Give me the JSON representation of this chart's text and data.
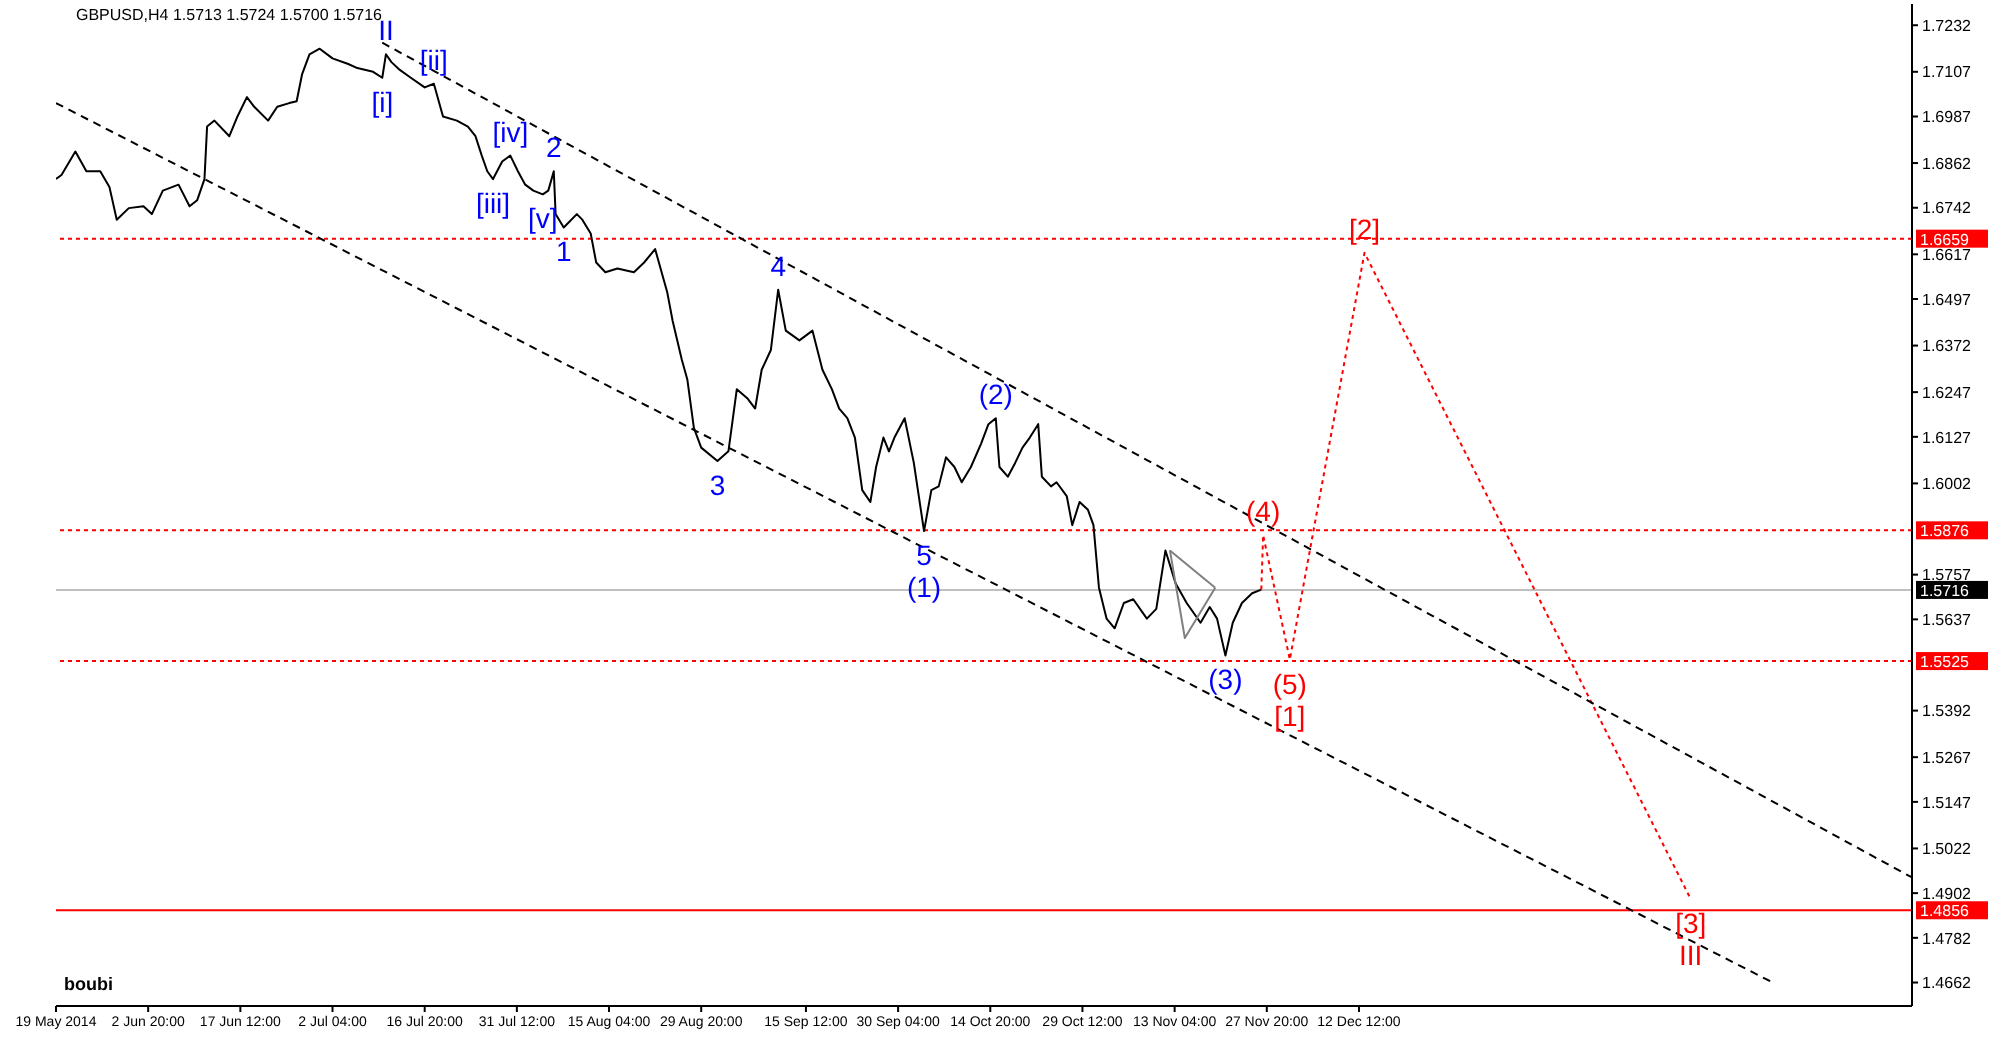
{
  "chart_data": {
    "type": "line",
    "title": "GBPUSD,H4 1.5713 1.5724 1.5700 1.5716",
    "xlim": [
      "2014-05-19T04:00",
      "2015-03-10T12:00"
    ],
    "xticks": [
      {
        "value": "2014-05-19T04:00",
        "label": "19 May 2014"
      },
      {
        "value": "2014-06-02T20:00",
        "label": "2 Jun 20:00"
      },
      {
        "value": "2014-06-17T12:00",
        "label": "17 Jun 12:00"
      },
      {
        "value": "2014-07-02T04:00",
        "label": "2 Jul 04:00"
      },
      {
        "value": "2014-07-16T20:00",
        "label": "16 Jul 20:00"
      },
      {
        "value": "2014-07-31T12:00",
        "label": "31 Jul 12:00"
      },
      {
        "value": "2014-08-15T04:00",
        "label": "15 Aug 04:00"
      },
      {
        "value": "2014-08-29T20:00",
        "label": "29 Aug 20:00"
      },
      {
        "value": "2014-09-15T12:00",
        "label": "15 Sep 12:00"
      },
      {
        "value": "2014-09-30T04:00",
        "label": "30 Sep 04:00"
      },
      {
        "value": "2014-10-14T20:00",
        "label": "14 Oct 20:00"
      },
      {
        "value": "2014-10-29T12:00",
        "label": "29 Oct 12:00"
      },
      {
        "value": "2014-11-13T04:00",
        "label": "13 Nov 04:00"
      },
      {
        "value": "2014-11-27T20:00",
        "label": "27 Nov 20:00"
      },
      {
        "value": "2014-12-12T12:00",
        "label": "12 Dec 12:00"
      }
    ],
    "ylim": [
      1.4599,
      1.7289
    ],
    "yticks": [
      1.7232,
      1.7107,
      1.6987,
      1.6862,
      1.6742,
      1.6617,
      1.6497,
      1.6372,
      1.6247,
      1.6127,
      1.6002,
      1.5757,
      1.5637,
      1.5392,
      1.5267,
      1.5147,
      1.5022,
      1.4902,
      1.4782,
      1.4662
    ],
    "grid": false,
    "marker": "none",
    "series": [
      {
        "color": "#000000",
        "line_style": "solid",
        "x": [
          "2014-05-19T04:00",
          "2014-05-20T01:00",
          "2014-05-22T06:00",
          "2014-05-24T00:00",
          "2014-05-26T05:00",
          "2014-05-27T16:00",
          "2014-05-28T20:00",
          "2014-05-30T18:00",
          "2014-06-02T02:00",
          "2014-06-03T10:00",
          "2014-06-05T04:00",
          "2014-06-07T16:00",
          "2014-06-09T10:00",
          "2014-06-10T15:00",
          "2014-06-11T19:00",
          "2014-06-12T05:00",
          "2014-06-13T09:00",
          "2014-06-15T18:00",
          "2014-06-17T01:00",
          "2014-06-18T13:00",
          "2014-06-19T17:00",
          "2014-06-21T22:00",
          "2014-06-23T09:00",
          "2014-06-25T07:00",
          "2014-06-26T11:00",
          "2014-06-27T08:00",
          "2014-06-28T12:00",
          "2014-06-30T03:00",
          "2014-07-02T04:00",
          "2014-07-04T16:00",
          "2014-07-06T03:00",
          "2014-07-08T15:00",
          "2014-07-10T02:00",
          "2014-07-10T16:00",
          "2014-07-11T13:00",
          "2014-07-12T21:00",
          "2014-07-14T15:00",
          "2014-07-16T20:00",
          "2014-07-18T07:00",
          "2014-07-19T18:00",
          "2014-07-21T23:00",
          "2014-07-23T17:00",
          "2014-07-24T22:00",
          "2014-07-25T22:00",
          "2014-07-26T19:00",
          "2014-07-27T17:00",
          "2014-07-29T04:00",
          "2014-07-30T11:00",
          "2014-07-31T16:00",
          "2014-08-01T20:00",
          "2014-08-03T03:00",
          "2014-08-04T15:00",
          "2014-08-05T12:00",
          "2014-08-06T09:00",
          "2014-08-06T16:00",
          "2014-08-07T23:00",
          "2014-08-10T01:00",
          "2014-08-10T22:00",
          "2014-08-12T06:00",
          "2014-08-13T03:00",
          "2014-08-14T14:00",
          "2014-08-16T12:00",
          "2014-08-19T03:00",
          "2014-08-20T18:00",
          "2014-08-22T12:00",
          "2014-08-24T10:00",
          "2014-08-25T07:00",
          "2014-08-26T18:00",
          "2014-08-27T15:00",
          "2014-08-28T16:00",
          "2014-08-29T20:00",
          "2014-09-01T10:00",
          "2014-09-03T04:00",
          "2014-09-04T12:00",
          "2014-09-06T06:00",
          "2014-09-07T10:00",
          "2014-09-08T11:00",
          "2014-09-09T22:00",
          "2014-09-11T02:00",
          "2014-09-12T07:00",
          "2014-09-14T11:00",
          "2014-09-16T13:00",
          "2014-09-18T03:00",
          "2014-09-19T15:00",
          "2014-09-20T19:00",
          "2014-09-22T02:00",
          "2014-09-23T07:00",
          "2014-09-24T11:00",
          "2014-09-25T18:00",
          "2014-09-26T16:00",
          "2014-09-27T20:00",
          "2014-09-28T17:00",
          "2014-09-29T14:00",
          "2014-10-01T05:00",
          "2014-10-02T16:00",
          "2014-10-04T07:00",
          "2014-10-05T11:00",
          "2014-10-06T15:00",
          "2014-10-07T19:00",
          "2014-10-09T03:00",
          "2014-10-10T07:00",
          "2014-10-11T18:00",
          "2014-10-13T09:00",
          "2014-10-14T13:00",
          "2014-10-15T17:00",
          "2014-10-16T07:00",
          "2014-10-17T15:00",
          "2014-10-18T19:00",
          "2014-10-19T23:00",
          "2014-10-21T03:00",
          "2014-10-22T11:00",
          "2014-10-23T01:00",
          "2014-10-24T12:00",
          "2014-10-25T09:00",
          "2014-10-27T00:00",
          "2014-10-27T21:00",
          "2014-10-29T01:00",
          "2014-10-30T09:00",
          "2014-10-31T06:00",
          "2014-11-01T03:00",
          "2014-11-02T08:00",
          "2014-11-03T15:00",
          "2014-11-05T02:00",
          "2014-11-06T14:00",
          "2014-11-08T18:00",
          "2014-11-10T06:00",
          "2014-11-11T17:00",
          "2014-11-13T08:00",
          "2014-11-15T02:00",
          "2014-11-17T07:00",
          "2014-11-18T18:00",
          "2014-11-19T22:00",
          "2014-11-21T06:00",
          "2014-11-22T10:00",
          "2014-11-23T21:00",
          "2014-11-25T12:00",
          "2014-11-26T23:00"
        ],
        "values": [
          1.6819,
          1.683,
          1.6893,
          1.684,
          1.684,
          1.6798,
          1.671,
          1.6741,
          1.6746,
          1.6725,
          1.6788,
          1.6804,
          1.6746,
          1.6762,
          1.6819,
          1.696,
          1.6976,
          1.6934,
          1.6987,
          1.7039,
          1.7013,
          1.6976,
          1.7013,
          1.7023,
          1.7028,
          1.7101,
          1.7154,
          1.7169,
          1.7143,
          1.7128,
          1.7117,
          1.7107,
          1.7091,
          1.7154,
          1.7133,
          1.7112,
          1.7091,
          1.7065,
          1.7075,
          1.6987,
          1.6976,
          1.696,
          1.6934,
          1.6882,
          1.684,
          1.6819,
          1.6866,
          1.6882,
          1.684,
          1.6804,
          1.6788,
          1.6778,
          1.6788,
          1.684,
          1.6725,
          1.6689,
          1.6725,
          1.671,
          1.6673,
          1.6595,
          1.6569,
          1.6579,
          1.6569,
          1.6595,
          1.6631,
          1.6516,
          1.6438,
          1.6334,
          1.6281,
          1.6151,
          1.6098,
          1.6062,
          1.6088,
          1.6255,
          1.6229,
          1.6203,
          1.6307,
          1.636,
          1.6522,
          1.6412,
          1.6386,
          1.6412,
          1.6307,
          1.6255,
          1.6203,
          1.6177,
          1.6125,
          1.5984,
          1.5952,
          1.6046,
          1.6125,
          1.6088,
          1.6125,
          1.6177,
          1.6057,
          1.5874,
          1.5984,
          1.5994,
          1.6072,
          1.6046,
          1.6005,
          1.6046,
          1.6109,
          1.6161,
          1.6177,
          1.6046,
          1.602,
          1.6057,
          1.6098,
          1.6125,
          1.6161,
          1.602,
          1.5994,
          1.6005,
          1.5968,
          1.589,
          1.5952,
          1.5931,
          1.589,
          1.5722,
          1.5639,
          1.5613,
          1.5681,
          1.5691,
          1.5639,
          1.5665,
          1.5822,
          1.5733,
          1.5681,
          1.5628,
          1.567,
          1.5639,
          1.554,
          1.5628,
          1.5681,
          1.5707,
          1.5717
        ]
      },
      {
        "color": "#ff0000",
        "line_style": "dotted",
        "x": [
          "2014-11-26T23:00",
          "2014-11-27T06:00",
          "2014-12-01T12:00",
          "2014-12-13T09:00",
          "2015-02-03T07:00"
        ],
        "values": [
          1.5717,
          1.5863,
          1.5529,
          1.6621,
          1.4886
        ]
      },
      {
        "color": "#000000",
        "line_style": "dashed",
        "x": [
          "2014-07-10T02:00",
          "2015-03-10T12:00"
        ],
        "values": [
          1.7185,
          1.4944
        ]
      },
      {
        "color": "#000000",
        "line_style": "dashed",
        "x": [
          "2014-05-19T04:00",
          "2015-02-16T08:00"
        ],
        "values": [
          1.7023,
          1.4662
        ]
      },
      {
        "color": "#808080",
        "line_style": "solid",
        "x": [
          "2014-11-12T10:00",
          "2014-11-19T15:00"
        ],
        "values": [
          1.5822,
          1.5722
        ]
      },
      {
        "color": "#808080",
        "line_style": "solid",
        "x": [
          "2014-11-12T10:00",
          "2014-11-14T19:00",
          "2014-11-19T15:00"
        ],
        "values": [
          1.5822,
          1.5587,
          1.5722
        ]
      }
    ],
    "ref_lines": [
      {
        "axis": "y",
        "value": 1.6659,
        "label": "1.6659",
        "color": "#ff0000",
        "line_style": "dotted"
      },
      {
        "axis": "y",
        "value": 1.5876,
        "label": "1.5876",
        "color": "#ff0000",
        "line_style": "dotted"
      },
      {
        "axis": "y",
        "value": 1.5716,
        "label": "1.5716",
        "color": "#c0c0c0",
        "line_style": "solid"
      },
      {
        "axis": "y",
        "value": 1.5525,
        "label": "1.5525",
        "color": "#ff0000",
        "line_style": "dotted"
      },
      {
        "axis": "y",
        "value": 1.4856,
        "label": "1.4856",
        "color": "#ff0000",
        "line_style": "solid"
      }
    ],
    "annotations": [
      {
        "text": "II",
        "x": "2014-07-10T16:00",
        "y": 1.7154
      },
      {
        "text": "[i]",
        "x": "2014-07-10T02:00",
        "y": 1.7091
      },
      {
        "text": "[ii]",
        "x": "2014-07-18T07:00",
        "y": 1.7075
      },
      {
        "text": "[iii]",
        "x": "2014-07-27T17:00",
        "y": 1.6819
      },
      {
        "text": "[iv]",
        "x": "2014-07-30T11:00",
        "y": 1.6882
      },
      {
        "text": "[v]",
        "x": "2014-08-04T15:00",
        "y": 1.6778
      },
      {
        "text": "2",
        "x": "2014-08-06T09:00",
        "y": 1.684
      },
      {
        "text": "1",
        "x": "2014-08-07T23:00",
        "y": 1.6689
      },
      {
        "text": "3",
        "x": "2014-09-01T10:00",
        "y": 1.6062
      },
      {
        "text": "4",
        "x": "2014-09-11T02:00",
        "y": 1.6522
      },
      {
        "text": "5",
        "x": "2014-10-04T07:00",
        "y": 1.5874
      },
      {
        "text": "(1)",
        "x": "2014-10-04T07:00",
        "y": 1.5874
      },
      {
        "text": "(2)",
        "x": "2014-10-15T17:00",
        "y": 1.6177
      },
      {
        "text": "(3)",
        "x": "2014-11-21T06:00",
        "y": 1.554
      },
      {
        "text": "(4)",
        "x": "2014-11-27T06:00",
        "y": 1.5863
      },
      {
        "text": "(5)",
        "x": "2014-12-01T12:00",
        "y": 1.5529
      },
      {
        "text": "[1]",
        "x": "2014-12-01T12:00",
        "y": 1.5529
      },
      {
        "text": "[2]",
        "x": "2014-12-13T09:00",
        "y": 1.6621
      },
      {
        "text": "[3]",
        "x": "2015-02-03T07:00",
        "y": 1.4886
      },
      {
        "text": "III",
        "x": "2015-02-03T07:00",
        "y": 1.4886
      },
      "boubi"
    ]
  }
}
